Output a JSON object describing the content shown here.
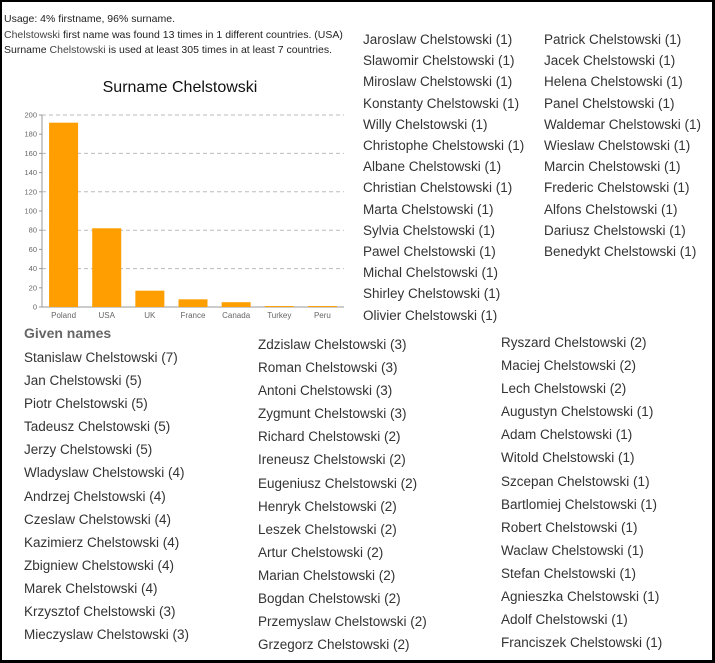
{
  "info": {
    "line1": "Usage: 4% firstname, 96% surname.",
    "line2_name": "Chelstowski",
    "line2_rest": " first name was found 13 times in 1 different countries. (USA)",
    "line3_pre": "Surname ",
    "line3_name": "Chelstowski",
    "line3_rest": " is used at least 305 times in at least 7 countries."
  },
  "chart_data": {
    "type": "bar",
    "title": "Surname Chelstowski",
    "categories": [
      "Poland",
      "USA",
      "UK",
      "France",
      "Canada",
      "Turkey",
      "Peru"
    ],
    "values": [
      192,
      82,
      17,
      8,
      5,
      1,
      1
    ],
    "xlabel": "",
    "ylabel": "",
    "ylim": [
      0,
      200
    ],
    "yticks": [
      0,
      20,
      40,
      60,
      80,
      100,
      120,
      140,
      160,
      180,
      200
    ],
    "grid": "dashed horizontal at 40-unit intervals",
    "bar_color": "#ff9e00",
    "legend": "none"
  },
  "surname_lists": {
    "col1": [
      "Jaroslaw Chelstowski (1)",
      "Slawomir Chelstowski (1)",
      "Miroslaw Chelstowski (1)",
      "Konstanty Chelstowski (1)",
      "Willy Chelstowski (1)",
      "Christophe Chelstowski (1)",
      "Albane Chelstowski (1)",
      "Christian Chelstowski (1)",
      "Marta Chelstowski (1)",
      "Sylvia Chelstowski (1)",
      "Pawel Chelstowski (1)",
      "Michal Chelstowski (1)",
      "Shirley Chelstowski (1)",
      "Olivier Chelstowski (1)"
    ],
    "col2": [
      "Patrick Chelstowski (1)",
      "Jacek Chelstowski (1)",
      "Helena Chelstowski (1)",
      "Panel Chelstowski (1)",
      "Waldemar Chelstowski (1)",
      "Wieslaw Chelstowski (1)",
      "Marcin Chelstowski (1)",
      "Frederic Chelstowski (1)",
      "Alfons Chelstowski (1)",
      "Dariusz Chelstowski (1)",
      "Benedykt Chelstowski (1)"
    ]
  },
  "given_names": {
    "title": "Given names",
    "col1": [
      "Stanislaw Chelstowski (7)",
      "Jan Chelstowski (5)",
      "Piotr Chelstowski (5)",
      "Tadeusz Chelstowski (5)",
      "Jerzy Chelstowski (5)",
      "Wladyslaw Chelstowski (4)",
      "Andrzej Chelstowski (4)",
      "Czeslaw Chelstowski (4)",
      "Kazimierz Chelstowski (4)",
      "Zbigniew Chelstowski (4)",
      "Marek Chelstowski (4)",
      "Krzysztof Chelstowski (3)",
      "Mieczyslaw Chelstowski (3)"
    ],
    "col2": [
      "Zdzislaw Chelstowski (3)",
      "Roman Chelstowski (3)",
      "Antoni Chelstowski (3)",
      "Zygmunt Chelstowski (3)",
      "Richard Chelstowski (2)",
      "Ireneusz Chelstowski (2)",
      "Eugeniusz Chelstowski (2)",
      "Henryk Chelstowski (2)",
      "Leszek Chelstowski (2)",
      "Artur Chelstowski (2)",
      "Marian Chelstowski (2)",
      "Bogdan Chelstowski (2)",
      "Przemyslaw Chelstowski (2)",
      "Grzegorz Chelstowski (2)"
    ],
    "col3": [
      "Ryszard Chelstowski (2)",
      "Maciej Chelstowski (2)",
      "Lech Chelstowski (2)",
      "Augustyn Chelstowski (1)",
      "Adam Chelstowski (1)",
      "Witold Chelstowski (1)",
      "Szcepan Chelstowski (1)",
      "Bartlomiej Chelstowski (1)",
      "Robert Chelstowski (1)",
      "Waclaw Chelstowski (1)",
      "Stefan Chelstowski (1)",
      "Agnieszka Chelstowski (1)",
      "Adolf Chelstowski (1)",
      "Franciszek Chelstowski (1)"
    ]
  }
}
